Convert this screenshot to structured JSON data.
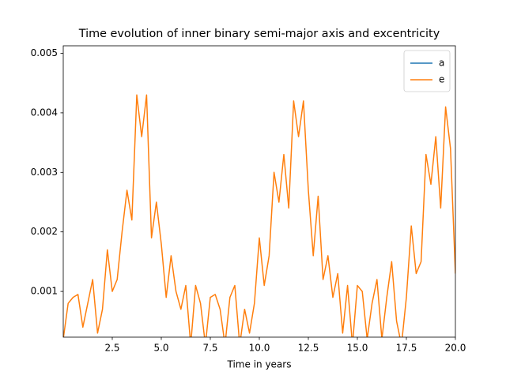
{
  "chart_data": {
    "type": "line",
    "title": "Time evolution of inner binary semi-major axis and excentricity",
    "x_label": "Time in years",
    "x": [
      0,
      0.25,
      0.5,
      0.75,
      1,
      1.25,
      1.5,
      1.75,
      2,
      2.25,
      2.5,
      2.75,
      3,
      3.25,
      3.5,
      3.75,
      4,
      4.25,
      4.5,
      4.75,
      5,
      5.25,
      5.5,
      5.75,
      6,
      6.25,
      6.5,
      6.75,
      7,
      7.25,
      7.5,
      7.75,
      8,
      8.25,
      8.5,
      8.75,
      9,
      9.25,
      9.5,
      9.75,
      10,
      10.25,
      10.5,
      10.75,
      11,
      11.25,
      11.5,
      11.75,
      12,
      12.25,
      12.5,
      12.75,
      13,
      13.25,
      13.5,
      13.75,
      14,
      14.25,
      14.5,
      14.75,
      15,
      15.25,
      15.5,
      15.75,
      16,
      16.25,
      16.5,
      16.75,
      17,
      17.25,
      17.5,
      17.75,
      18,
      18.25,
      18.5,
      18.75,
      19,
      19.25,
      19.5,
      19.75,
      20
    ],
    "series": [
      {
        "name": "a",
        "color": "#1f77b4",
        "values": [
          null,
          null,
          null,
          null,
          null,
          null,
          null,
          null,
          null,
          null,
          null,
          null,
          null,
          null,
          null,
          null,
          null,
          null,
          null,
          null,
          null,
          null,
          null,
          null,
          null,
          null,
          null,
          null,
          null,
          null,
          null,
          null,
          null,
          null,
          null,
          null,
          null,
          null,
          null,
          null,
          null,
          null,
          null,
          null,
          null,
          null,
          null,
          null,
          null,
          null,
          null,
          null,
          null,
          null,
          null,
          null,
          null,
          null,
          null,
          null,
          null,
          null,
          null,
          null,
          null,
          null,
          null,
          null,
          null,
          null,
          null,
          null,
          null,
          null,
          null,
          null,
          null,
          null,
          null,
          null,
          null
        ]
      },
      {
        "name": "e",
        "color": "#ff7f0e",
        "values": [
          0.0002,
          0.0008,
          0.0009,
          0.00095,
          0.0004,
          0.0008,
          0.0012,
          0.0003,
          0.0007,
          0.0017,
          0.001,
          0.0012,
          0.002,
          0.0027,
          0.0022,
          0.0043,
          0.0036,
          0.0043,
          0.0019,
          0.0025,
          0.0018,
          0.0009,
          0.0016,
          0.001,
          0.0007,
          0.0011,
          0.0001,
          0.0011,
          0.0008,
          0.0001,
          0.0009,
          0.00095,
          0.0007,
          0.0001,
          0.0009,
          0.0011,
          0.0001,
          0.0007,
          0.0003,
          0.0008,
          0.0019,
          0.0011,
          0.0016,
          0.003,
          0.0025,
          0.0033,
          0.0024,
          0.0042,
          0.0036,
          0.0042,
          0.0027,
          0.0016,
          0.0026,
          0.0012,
          0.0016,
          0.0009,
          0.0013,
          0.0003,
          0.0011,
          0.0001,
          0.0011,
          0.001,
          0.0002,
          0.0008,
          0.0012,
          0.0002,
          0.0009,
          0.0015,
          0.0005,
          0.0001,
          0.0009,
          0.0021,
          0.0013,
          0.0015,
          0.0033,
          0.0028,
          0.0036,
          0.0024,
          0.0041,
          0.0034,
          0.0013
        ]
      }
    ],
    "xlim": [
      0,
      20
    ],
    "ylim": [
      0.000232,
      0.005126
    ],
    "xticks": [
      2.5,
      {
        "value": 5,
        "label": "5.0"
      },
      7.5,
      {
        "value": 10,
        "label": "10.0"
      },
      12.5,
      {
        "value": 15,
        "label": "15.0"
      },
      17.5,
      {
        "value": 20,
        "label": "20.0"
      }
    ],
    "yticks": [
      0.001,
      0.002,
      0.003,
      0.004,
      0.005
    ],
    "legend": "upper right"
  }
}
